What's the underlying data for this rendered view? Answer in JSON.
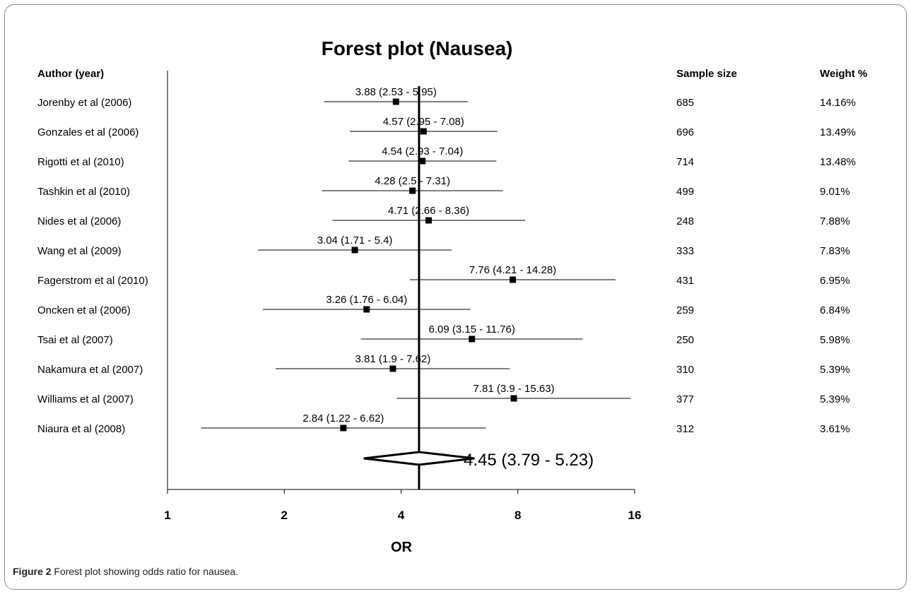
{
  "chart_data": {
    "type": "forest",
    "title": "Forest plot (Nausea)",
    "xlabel": "OR",
    "x_scale": "log2",
    "xlim": [
      1,
      16
    ],
    "x_ticks": [
      1,
      2,
      4,
      8,
      16
    ],
    "reference_line": 4.45,
    "columns": {
      "author": "Author (year)",
      "sample": "Sample size",
      "weight": "Weight %"
    },
    "studies": [
      {
        "author": "Jorenby et al (2006)",
        "or": 3.88,
        "lo": 2.53,
        "hi": 5.95,
        "label": "3.88 (2.53 - 5.95)",
        "n": "685",
        "weight": "14.16%"
      },
      {
        "author": "Gonzales et al (2006)",
        "or": 4.57,
        "lo": 2.95,
        "hi": 7.08,
        "label": "4.57 (2.95 - 7.08)",
        "n": "696",
        "weight": "13.49%"
      },
      {
        "author": "Rigotti et al (2010)",
        "or": 4.54,
        "lo": 2.93,
        "hi": 7.04,
        "label": "4.54 (2.93 - 7.04)",
        "n": "714",
        "weight": "13.48%"
      },
      {
        "author": "Tashkin et al (2010)",
        "or": 4.28,
        "lo": 2.5,
        "hi": 7.31,
        "label": "4.28 (2.5 - 7.31)",
        "n": "499",
        "weight": "9.01%"
      },
      {
        "author": "Nides et al (2006)",
        "or": 4.71,
        "lo": 2.66,
        "hi": 8.36,
        "label": "4.71 (2.66 - 8.36)",
        "n": "248",
        "weight": "7.88%"
      },
      {
        "author": "Wang et al (2009)",
        "or": 3.04,
        "lo": 1.71,
        "hi": 5.4,
        "label": "3.04 (1.71 - 5.4)",
        "n": "333",
        "weight": "7.83%"
      },
      {
        "author": "Fagerstrom et al (2010)",
        "or": 7.76,
        "lo": 4.21,
        "hi": 14.28,
        "label": "7.76 (4.21 - 14.28)",
        "n": "431",
        "weight": "6.95%"
      },
      {
        "author": "Oncken et al (2006)",
        "or": 3.26,
        "lo": 1.76,
        "hi": 6.04,
        "label": "3.26 (1.76 - 6.04)",
        "n": "259",
        "weight": "6.84%"
      },
      {
        "author": "Tsai et al  (2007)",
        "or": 6.09,
        "lo": 3.15,
        "hi": 11.76,
        "label": "6.09 (3.15 - 11.76)",
        "n": "250",
        "weight": "5.98%"
      },
      {
        "author": "Nakamura et al (2007)",
        "or": 3.81,
        "lo": 1.9,
        "hi": 7.62,
        "label": "3.81 (1.9 - 7.62)",
        "n": "310",
        "weight": "5.39%"
      },
      {
        "author": "Williams et al (2007)",
        "or": 7.81,
        "lo": 3.9,
        "hi": 15.63,
        "label": "7.81 (3.9 - 15.63)",
        "n": "377",
        "weight": "5.39%"
      },
      {
        "author": "Niaura et al (2008)",
        "or": 2.84,
        "lo": 1.22,
        "hi": 6.62,
        "label": "2.84 (1.22 - 6.62)",
        "n": "312",
        "weight": "3.61%"
      }
    ],
    "pooled": {
      "or": 4.45,
      "lo": 3.79,
      "hi": 5.23,
      "label": "4.45 (3.79 - 5.23)"
    },
    "grid": false,
    "legend": "none"
  },
  "caption": {
    "figure_label": "Figure 2",
    "text": "Forest plot showing odds ratio for nausea."
  },
  "colors": {
    "ink": "#000000",
    "frame": "#8a8a8a"
  }
}
